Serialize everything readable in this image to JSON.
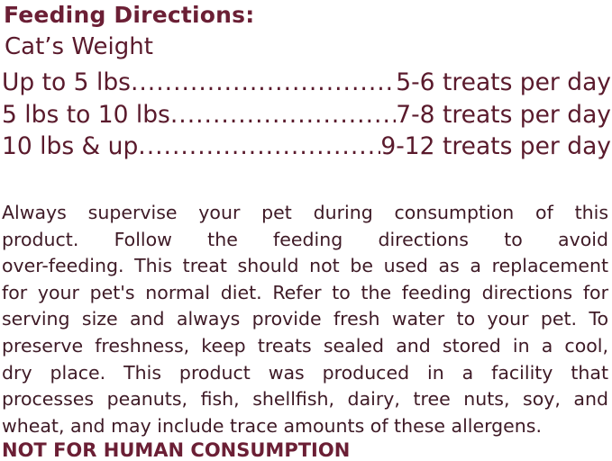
{
  "title": "Feeding Directions:",
  "subtitle": "Cat’s Weight",
  "rows": [
    {
      "weight": "Up to 5 lbs",
      "amount": "5-6 treats per day"
    },
    {
      "weight": "5 lbs to 10 lbs",
      "amount": "7-8 treats per day"
    },
    {
      "weight": "10 lbs & up",
      "amount": "9-12 treats per day"
    }
  ],
  "paragraph_lines": [
    "Always supervise your pet during consumption of this",
    "product. Follow the feeding directions to avoid",
    "over-feeding. This treat should not be used as a replacement",
    "for your pet's normal diet. Refer to the feeding directions for",
    "serving size and always provide fresh water to your pet. To",
    "preserve freshness, keep treats sealed and stored in a cool,",
    "dry place. This product was produced in a facility that",
    "processes peanuts, fish, shellfish, dairy, tree nuts, soy, and",
    "wheat, and may include trace amounts of these allergens."
  ],
  "warning": "NOT FOR HUMAN CONSUMPTION",
  "colors": {
    "heading": "#6b1f35",
    "text": "#3e1a26"
  }
}
